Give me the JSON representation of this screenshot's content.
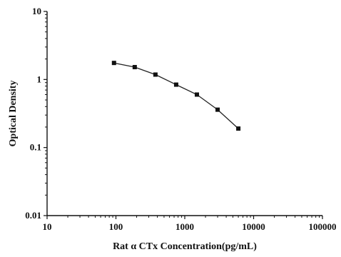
{
  "chart_data": {
    "type": "line",
    "title": "",
    "xlabel": "Rat α CTx Concentration(pg/mL)",
    "ylabel": "Optical Density",
    "x_scale": "log",
    "y_scale": "log",
    "xlim": [
      10,
      100000
    ],
    "ylim": [
      0.01,
      10
    ],
    "x_ticks": [
      "10",
      "100",
      "1000",
      "10000",
      "100000"
    ],
    "y_ticks": [
      "0.01",
      "0.1",
      "1",
      "10"
    ],
    "grid": false,
    "legend": "none",
    "series": [
      {
        "x": [
          93.75,
          187.5,
          375,
          750,
          1500,
          3000,
          6000
        ],
        "y": [
          1.75,
          1.52,
          1.18,
          0.84,
          0.6,
          0.36,
          0.19
        ]
      }
    ],
    "colors": {
      "line": "#222222",
      "marker": "#111111",
      "axis": "#111111"
    }
  }
}
